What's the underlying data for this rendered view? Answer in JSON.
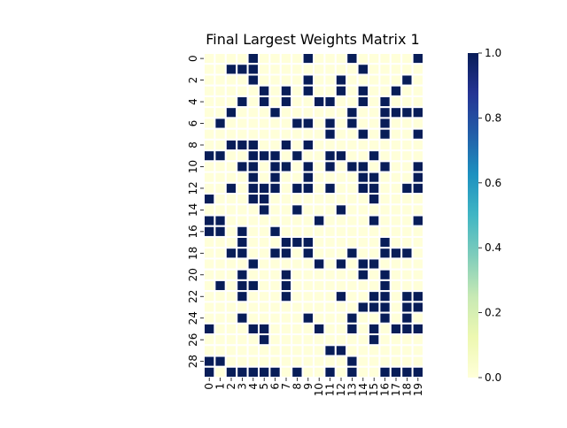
{
  "chart_data": {
    "type": "heatmap",
    "title": "Final Largest Weights Matrix 1",
    "xlabel": "",
    "ylabel": "",
    "x_ticks": [
      "0",
      "1",
      "2",
      "3",
      "4",
      "5",
      "6",
      "7",
      "8",
      "9",
      "10",
      "11",
      "12",
      "13",
      "14",
      "15",
      "16",
      "17",
      "18",
      "19"
    ],
    "y_ticks": [
      "0",
      "2",
      "4",
      "6",
      "8",
      "10",
      "12",
      "14",
      "16",
      "18",
      "20",
      "22",
      "24",
      "26",
      "28"
    ],
    "rows": 30,
    "cols": 20,
    "values": [
      [
        0,
        0,
        0,
        0,
        1,
        0,
        0,
        0,
        0,
        1,
        0,
        0,
        0,
        1,
        0,
        0,
        0,
        0,
        0,
        1
      ],
      [
        0,
        0,
        1,
        1,
        1,
        0,
        0,
        0,
        0,
        0,
        0,
        0,
        0,
        0,
        1,
        0,
        0,
        0,
        0,
        0
      ],
      [
        0,
        0,
        0,
        0,
        1,
        0,
        0,
        0,
        0,
        1,
        0,
        0,
        1,
        0,
        0,
        0,
        0,
        0,
        1,
        0
      ],
      [
        0,
        0,
        0,
        0,
        0,
        1,
        0,
        1,
        0,
        1,
        0,
        0,
        1,
        0,
        1,
        0,
        0,
        1,
        0,
        0
      ],
      [
        0,
        0,
        0,
        1,
        0,
        1,
        0,
        1,
        0,
        0,
        1,
        1,
        0,
        0,
        1,
        0,
        1,
        0,
        0,
        0
      ],
      [
        0,
        0,
        1,
        0,
        0,
        0,
        1,
        0,
        0,
        0,
        0,
        0,
        0,
        1,
        0,
        0,
        1,
        1,
        1,
        1
      ],
      [
        0,
        1,
        0,
        0,
        0,
        0,
        0,
        0,
        1,
        1,
        0,
        1,
        0,
        1,
        0,
        0,
        1,
        0,
        0,
        0
      ],
      [
        0,
        0,
        0,
        0,
        0,
        0,
        0,
        0,
        0,
        0,
        0,
        1,
        0,
        0,
        1,
        0,
        1,
        0,
        0,
        1
      ],
      [
        0,
        0,
        1,
        1,
        1,
        0,
        0,
        1,
        0,
        1,
        0,
        0,
        0,
        0,
        0,
        0,
        0,
        0,
        0,
        0
      ],
      [
        1,
        1,
        0,
        0,
        1,
        1,
        1,
        0,
        1,
        0,
        0,
        1,
        1,
        0,
        0,
        1,
        0,
        0,
        0,
        0
      ],
      [
        0,
        0,
        0,
        1,
        1,
        0,
        1,
        1,
        0,
        1,
        0,
        1,
        0,
        1,
        1,
        0,
        1,
        0,
        0,
        1
      ],
      [
        0,
        0,
        0,
        0,
        1,
        0,
        1,
        0,
        0,
        1,
        0,
        0,
        0,
        0,
        1,
        1,
        0,
        0,
        0,
        1
      ],
      [
        0,
        0,
        1,
        0,
        1,
        1,
        1,
        0,
        1,
        1,
        0,
        1,
        0,
        0,
        1,
        1,
        0,
        0,
        1,
        1
      ],
      [
        1,
        0,
        0,
        0,
        1,
        1,
        0,
        0,
        0,
        0,
        0,
        0,
        0,
        0,
        0,
        1,
        0,
        0,
        0,
        0
      ],
      [
        0,
        0,
        0,
        0,
        0,
        1,
        0,
        0,
        1,
        0,
        0,
        0,
        1,
        0,
        0,
        0,
        0,
        0,
        0,
        0
      ],
      [
        1,
        1,
        0,
        0,
        0,
        0,
        0,
        0,
        0,
        0,
        1,
        0,
        0,
        0,
        0,
        1,
        0,
        0,
        0,
        1
      ],
      [
        1,
        1,
        0,
        1,
        0,
        0,
        1,
        0,
        0,
        0,
        0,
        0,
        0,
        0,
        0,
        0,
        0,
        0,
        0,
        0
      ],
      [
        0,
        0,
        0,
        1,
        0,
        0,
        0,
        1,
        1,
        1,
        0,
        0,
        0,
        0,
        0,
        0,
        1,
        0,
        0,
        0
      ],
      [
        0,
        0,
        1,
        1,
        0,
        0,
        1,
        1,
        0,
        1,
        0,
        0,
        0,
        1,
        0,
        0,
        1,
        1,
        1,
        0
      ],
      [
        0,
        0,
        0,
        0,
        1,
        0,
        0,
        0,
        0,
        0,
        1,
        0,
        1,
        0,
        1,
        1,
        0,
        0,
        0,
        0
      ],
      [
        0,
        0,
        0,
        1,
        0,
        0,
        0,
        1,
        0,
        0,
        0,
        0,
        0,
        0,
        1,
        0,
        1,
        0,
        0,
        0
      ],
      [
        0,
        1,
        0,
        1,
        1,
        0,
        0,
        1,
        0,
        0,
        0,
        0,
        0,
        0,
        0,
        0,
        1,
        0,
        0,
        0
      ],
      [
        0,
        0,
        0,
        1,
        0,
        0,
        0,
        1,
        0,
        0,
        0,
        0,
        1,
        0,
        0,
        1,
        1,
        0,
        1,
        1
      ],
      [
        0,
        0,
        0,
        0,
        0,
        0,
        0,
        0,
        0,
        0,
        0,
        0,
        0,
        0,
        1,
        1,
        1,
        0,
        1,
        1
      ],
      [
        0,
        0,
        0,
        1,
        0,
        0,
        0,
        0,
        0,
        1,
        0,
        0,
        0,
        1,
        0,
        0,
        1,
        0,
        1,
        0
      ],
      [
        1,
        0,
        0,
        0,
        1,
        1,
        0,
        0,
        0,
        0,
        1,
        0,
        0,
        1,
        0,
        1,
        0,
        1,
        1,
        1
      ],
      [
        0,
        0,
        0,
        0,
        0,
        1,
        0,
        0,
        0,
        0,
        0,
        0,
        0,
        0,
        0,
        1,
        0,
        0,
        0,
        0
      ],
      [
        0,
        0,
        0,
        0,
        0,
        0,
        0,
        0,
        0,
        0,
        0,
        1,
        1,
        0,
        0,
        0,
        0,
        0,
        0,
        0
      ],
      [
        1,
        1,
        0,
        0,
        0,
        0,
        0,
        0,
        0,
        0,
        0,
        0,
        0,
        1,
        0,
        0,
        0,
        0,
        0,
        0
      ],
      [
        1,
        0,
        1,
        1,
        1,
        1,
        1,
        0,
        1,
        0,
        0,
        1,
        0,
        1,
        0,
        0,
        1,
        1,
        1,
        1
      ]
    ],
    "vmin": 0,
    "vmax": 1,
    "colormap": "YlGnBu",
    "colors": {
      "low": "#ffffd9",
      "high": "#081d58",
      "cell_border": "#ffffff"
    },
    "colorbar": {
      "ticks": [
        "0.0",
        "0.2",
        "0.4",
        "0.6",
        "0.8",
        "1.0"
      ],
      "tick_values": [
        0,
        0.2,
        0.4,
        0.6,
        0.8,
        1.0
      ],
      "placement": "right"
    }
  }
}
